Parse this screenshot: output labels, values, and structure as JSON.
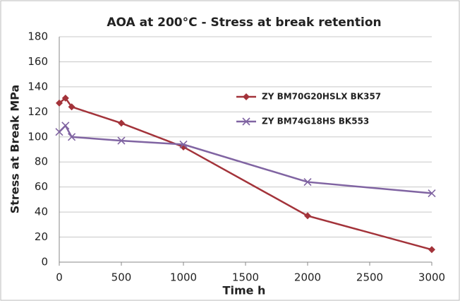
{
  "chart_data": {
    "type": "line",
    "title": "AOA at 200°C - Stress at break retention",
    "x_label": "Time h",
    "y_label": "Stress at Break MPa",
    "x": [
      0,
      50,
      100,
      500,
      1000,
      2000,
      3000
    ],
    "series": [
      {
        "name": "ZY BM70G20HSLX BK357",
        "color": "#a3333a",
        "marker": "diamond",
        "values": [
          127,
          131,
          124,
          111,
          92,
          37,
          10
        ]
      },
      {
        "name": "ZY BM74G18HS BK553",
        "color": "#8064a2",
        "marker": "x",
        "values": [
          104,
          109,
          100,
          97,
          94,
          64,
          55
        ]
      }
    ],
    "xlim": [
      0,
      3000
    ],
    "xticks": [
      0,
      500,
      1000,
      1500,
      2000,
      2500,
      3000
    ],
    "ylim": [
      0,
      180
    ],
    "yticks": [
      0,
      20,
      40,
      60,
      80,
      100,
      120,
      140,
      160,
      180
    ],
    "grid": true,
    "legend": "center right"
  }
}
